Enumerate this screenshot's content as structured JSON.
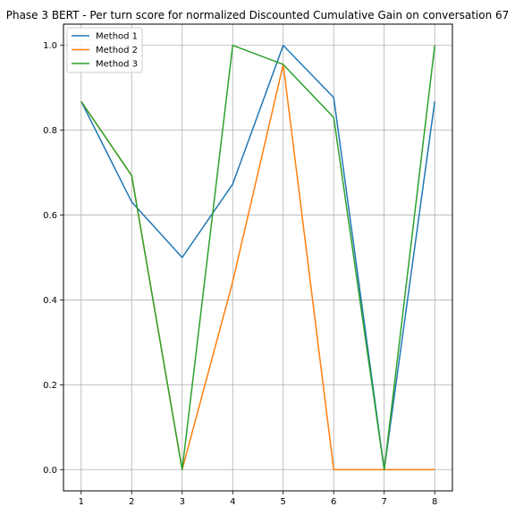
{
  "chart_data": {
    "type": "line",
    "title": "Phase 3 BERT - Per turn score for normalized Discounted Cumulative Gain on conversation 67",
    "xlabel": "",
    "ylabel": "",
    "x": [
      1,
      2,
      3,
      4,
      5,
      6,
      7,
      8
    ],
    "xlim": [
      0.65,
      8.35
    ],
    "ylim": [
      -0.05,
      1.05
    ],
    "x_ticks": [
      "1",
      "2",
      "3",
      "4",
      "5",
      "6",
      "7",
      "8"
    ],
    "y_ticks": [
      "0.0",
      "0.2",
      "0.4",
      "0.6",
      "0.8",
      "1.0"
    ],
    "grid": true,
    "legend_position": "top-left",
    "series": [
      {
        "name": "Method 1",
        "color": "#1f77b4",
        "values": [
          0.868,
          0.631,
          0.5,
          0.673,
          1.0,
          0.877,
          0.0,
          0.868
        ]
      },
      {
        "name": "Method 2",
        "color": "#ff7f0e",
        "values": [
          0.868,
          0.693,
          0.0,
          0.443,
          0.955,
          0.0,
          0.0,
          0.0
        ]
      },
      {
        "name": "Method 3",
        "color": "#2ca02c",
        "values": [
          0.868,
          0.693,
          0.0,
          1.0,
          0.955,
          0.83,
          0.0,
          1.0
        ]
      }
    ]
  }
}
